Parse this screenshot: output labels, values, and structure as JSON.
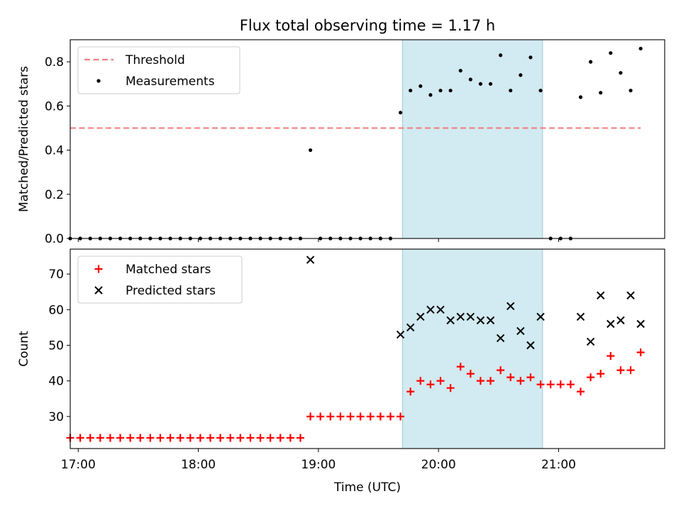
{
  "title": "Flux total observing time = 1.17 h",
  "colors": {
    "threshold": "#f08080",
    "measurements": "#000000",
    "matched": "#ff0000",
    "predicted": "#000000",
    "observing_span": "#add8e6"
  },
  "chart_data": [
    {
      "type": "scatter",
      "ylabel": "Matched/Predicted stars",
      "xlabel": "",
      "xlim": [
        "16:56",
        "21:53"
      ],
      "ylim": [
        0,
        0.9
      ],
      "yticks": [
        0.0,
        0.2,
        0.4,
        0.6,
        0.8
      ],
      "ytick_labels": [
        "0.0",
        "0.2",
        "0.4",
        "0.6",
        "0.8"
      ],
      "highlight_span": [
        "19:42",
        "20:52"
      ],
      "legend_position": "top-left",
      "legend": [
        "Threshold",
        "Measurements"
      ],
      "threshold": {
        "name": "Threshold",
        "x": [
          "16:56",
          "21:41"
        ],
        "y": 0.5
      },
      "series": [
        {
          "name": "Measurements",
          "points": [
            [
              "16:56",
              0.0
            ],
            [
              "17:01",
              0.0
            ],
            [
              "17:06",
              0.0
            ],
            [
              "17:11",
              0.0
            ],
            [
              "17:16",
              0.0
            ],
            [
              "17:21",
              0.0
            ],
            [
              "17:26",
              0.0
            ],
            [
              "17:31",
              0.0
            ],
            [
              "17:36",
              0.0
            ],
            [
              "17:41",
              0.0
            ],
            [
              "17:46",
              0.0
            ],
            [
              "17:51",
              0.0
            ],
            [
              "17:56",
              0.0
            ],
            [
              "18:01",
              0.0
            ],
            [
              "18:06",
              0.0
            ],
            [
              "18:11",
              0.0
            ],
            [
              "18:16",
              0.0
            ],
            [
              "18:21",
              0.0
            ],
            [
              "18:26",
              0.0
            ],
            [
              "18:31",
              0.0
            ],
            [
              "18:36",
              0.0
            ],
            [
              "18:41",
              0.0
            ],
            [
              "18:46",
              0.0
            ],
            [
              "18:51",
              0.0
            ],
            [
              "18:56",
              0.4
            ],
            [
              "19:01",
              0.0
            ],
            [
              "19:06",
              0.0
            ],
            [
              "19:11",
              0.0
            ],
            [
              "19:16",
              0.0
            ],
            [
              "19:21",
              0.0
            ],
            [
              "19:26",
              0.0
            ],
            [
              "19:31",
              0.0
            ],
            [
              "19:36",
              0.0
            ],
            [
              "19:41",
              0.57
            ],
            [
              "19:46",
              0.67
            ],
            [
              "19:51",
              0.69
            ],
            [
              "19:56",
              0.65
            ],
            [
              "20:01",
              0.67
            ],
            [
              "20:06",
              0.67
            ],
            [
              "20:11",
              0.76
            ],
            [
              "20:16",
              0.72
            ],
            [
              "20:21",
              0.7
            ],
            [
              "20:26",
              0.7
            ],
            [
              "20:31",
              0.83
            ],
            [
              "20:36",
              0.67
            ],
            [
              "20:41",
              0.74
            ],
            [
              "20:46",
              0.82
            ],
            [
              "20:51",
              0.67
            ],
            [
              "20:56",
              0.0
            ],
            [
              "21:01",
              0.0
            ],
            [
              "21:06",
              0.0
            ],
            [
              "21:11",
              0.64
            ],
            [
              "21:16",
              0.8
            ],
            [
              "21:21",
              0.66
            ],
            [
              "21:26",
              0.84
            ],
            [
              "21:31",
              0.75
            ],
            [
              "21:36",
              0.67
            ],
            [
              "21:41",
              0.86
            ]
          ]
        }
      ]
    },
    {
      "type": "scatter",
      "ylabel": "Count",
      "xlabel": "Time (UTC)",
      "xlim": [
        "16:56",
        "21:53"
      ],
      "ylim": [
        21,
        77
      ],
      "yticks": [
        30,
        40,
        50,
        60,
        70
      ],
      "ytick_labels": [
        "30",
        "40",
        "50",
        "60",
        "70"
      ],
      "xticks": [
        "17:00",
        "18:00",
        "19:00",
        "20:00",
        "21:00"
      ],
      "xtick_labels": [
        "17:00",
        "18:00",
        "19:00",
        "20:00",
        "21:00"
      ],
      "highlight_span": [
        "19:42",
        "20:52"
      ],
      "legend_position": "top-left",
      "legend": [
        "Matched stars",
        "Predicted stars"
      ],
      "series": [
        {
          "name": "Matched stars",
          "points": [
            [
              "16:56",
              24
            ],
            [
              "17:01",
              24
            ],
            [
              "17:06",
              24
            ],
            [
              "17:11",
              24
            ],
            [
              "17:16",
              24
            ],
            [
              "17:21",
              24
            ],
            [
              "17:26",
              24
            ],
            [
              "17:31",
              24
            ],
            [
              "17:36",
              24
            ],
            [
              "17:41",
              24
            ],
            [
              "17:46",
              24
            ],
            [
              "17:51",
              24
            ],
            [
              "17:56",
              24
            ],
            [
              "18:01",
              24
            ],
            [
              "18:06",
              24
            ],
            [
              "18:11",
              24
            ],
            [
              "18:16",
              24
            ],
            [
              "18:21",
              24
            ],
            [
              "18:26",
              24
            ],
            [
              "18:31",
              24
            ],
            [
              "18:36",
              24
            ],
            [
              "18:41",
              24
            ],
            [
              "18:46",
              24
            ],
            [
              "18:51",
              24
            ],
            [
              "18:56",
              30
            ],
            [
              "19:01",
              30
            ],
            [
              "19:06",
              30
            ],
            [
              "19:11",
              30
            ],
            [
              "19:16",
              30
            ],
            [
              "19:21",
              30
            ],
            [
              "19:26",
              30
            ],
            [
              "19:31",
              30
            ],
            [
              "19:36",
              30
            ],
            [
              "19:41",
              30
            ],
            [
              "19:46",
              37
            ],
            [
              "19:51",
              40
            ],
            [
              "19:56",
              39
            ],
            [
              "20:01",
              40
            ],
            [
              "20:06",
              38
            ],
            [
              "20:11",
              44
            ],
            [
              "20:16",
              42
            ],
            [
              "20:21",
              40
            ],
            [
              "20:26",
              40
            ],
            [
              "20:31",
              43
            ],
            [
              "20:36",
              41
            ],
            [
              "20:41",
              40
            ],
            [
              "20:46",
              41
            ],
            [
              "20:51",
              39
            ],
            [
              "20:56",
              39
            ],
            [
              "21:01",
              39
            ],
            [
              "21:06",
              39
            ],
            [
              "21:11",
              37
            ],
            [
              "21:16",
              41
            ],
            [
              "21:21",
              42
            ],
            [
              "21:26",
              47
            ],
            [
              "21:31",
              43
            ],
            [
              "21:36",
              43
            ],
            [
              "21:41",
              48
            ]
          ]
        },
        {
          "name": "Predicted stars",
          "points": [
            [
              "18:56",
              74
            ],
            [
              "19:41",
              53
            ],
            [
              "19:46",
              55
            ],
            [
              "19:51",
              58
            ],
            [
              "19:56",
              60
            ],
            [
              "20:01",
              60
            ],
            [
              "20:06",
              57
            ],
            [
              "20:11",
              58
            ],
            [
              "20:16",
              58
            ],
            [
              "20:21",
              57
            ],
            [
              "20:26",
              57
            ],
            [
              "20:31",
              52
            ],
            [
              "20:36",
              61
            ],
            [
              "20:41",
              54
            ],
            [
              "20:46",
              50
            ],
            [
              "20:51",
              58
            ],
            [
              "21:11",
              58
            ],
            [
              "21:16",
              51
            ],
            [
              "21:21",
              64
            ],
            [
              "21:26",
              56
            ],
            [
              "21:31",
              57
            ],
            [
              "21:36",
              64
            ],
            [
              "21:41",
              56
            ]
          ]
        }
      ]
    }
  ]
}
